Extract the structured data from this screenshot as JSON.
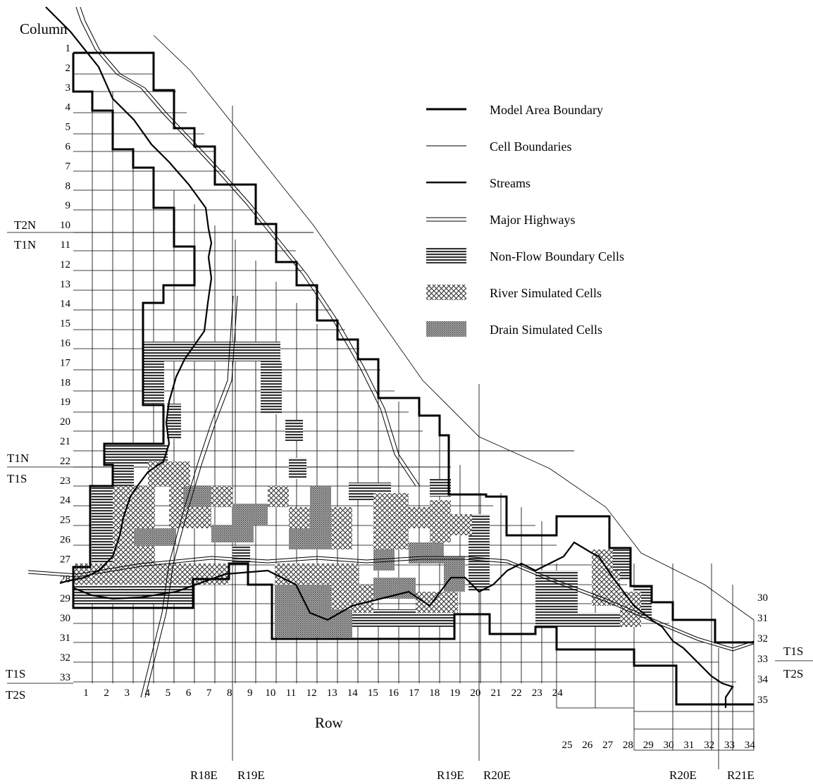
{
  "colors": {
    "ink": "#000000",
    "background": "#ffffff",
    "nonflow_fill": "#444444",
    "river_fill": "#888888",
    "drain_fill": "#9a9a9a"
  },
  "axis": {
    "column_title": "Column",
    "row_title": "Row"
  },
  "column_labels_left": [
    "1",
    "2",
    "3",
    "4",
    "5",
    "6",
    "7",
    "8",
    "9",
    "10",
    "11",
    "12",
    "13",
    "14",
    "15",
    "16",
    "17",
    "18",
    "19",
    "20",
    "21",
    "22",
    "23",
    "24",
    "25",
    "26",
    "27",
    "28",
    "29",
    "30",
    "31",
    "32",
    "33"
  ],
  "column_labels_right": [
    "30",
    "31",
    "32",
    "33",
    "34",
    "35"
  ],
  "row_labels_main": [
    "1",
    "2",
    "3",
    "4",
    "5",
    "6",
    "7",
    "8",
    "9",
    "10",
    "11",
    "12",
    "13",
    "14",
    "15",
    "16",
    "17",
    "18",
    "19",
    "20",
    "21",
    "22",
    "23",
    "24"
  ],
  "row_labels_lower": [
    "25",
    "26",
    "27",
    "28",
    "29",
    "30",
    "31",
    "32",
    "33",
    "34"
  ],
  "township": {
    "t2n_top": "T2N",
    "t1n_top": "T1N",
    "t1n_mid": "T1N",
    "t1s_mid": "T1S",
    "t1s_low": "T1S",
    "t2s_low": "T2S",
    "t1s_right": "T1S",
    "t2s_right": "T2S"
  },
  "range": {
    "r18e": "R18E",
    "r19e_a": "R19E",
    "r19e_b": "R19E",
    "r20e_a": "R20E",
    "r20e_b": "R20E",
    "r21e": "R21E"
  },
  "legend": {
    "model_boundary": "Model Area Boundary",
    "cell_boundaries": "Cell Boundaries",
    "streams": "Streams",
    "highways": "Major Highways",
    "nonflow": "Non-Flow Boundary Cells",
    "river": "River Simulated Cells",
    "drain": "Drain Simulated Cells"
  }
}
